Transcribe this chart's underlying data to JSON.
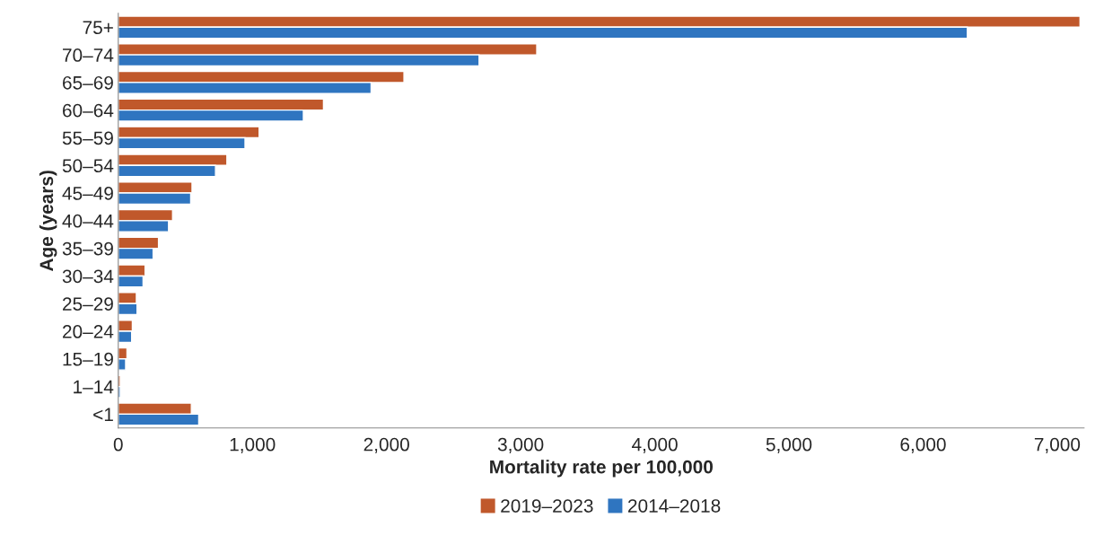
{
  "chart_data": {
    "type": "bar",
    "orientation": "horizontal",
    "xlabel": "Mortality rate per 100,000",
    "ylabel": "Age (years)",
    "categories": [
      "75+",
      "70–74",
      "65–69",
      "60–64",
      "55–59",
      "50–54",
      "45–49",
      "40–44",
      "35–39",
      "30–34",
      "25–29",
      "20–24",
      "15–19",
      "1–14",
      "<1"
    ],
    "series": [
      {
        "name": "2019–2023",
        "color": "#c0582b",
        "values": [
          7170,
          3120,
          2130,
          1530,
          1050,
          810,
          550,
          405,
          300,
          200,
          135,
          105,
          65,
          15,
          545
        ]
      },
      {
        "name": "2014–2018",
        "color": "#2f75c0",
        "values": [
          6330,
          2690,
          1885,
          1380,
          945,
          725,
          540,
          375,
          260,
          185,
          140,
          100,
          55,
          15,
          600
        ]
      }
    ],
    "xlim": [
      0,
      7200
    ],
    "xticks": [
      {
        "value": 0,
        "label": "0"
      },
      {
        "value": 1000,
        "label": "1,000"
      },
      {
        "value": 2000,
        "label": "2,000"
      },
      {
        "value": 3000,
        "label": "3,000"
      },
      {
        "value": 4000,
        "label": "4,000"
      },
      {
        "value": 5000,
        "label": "5,000"
      },
      {
        "value": 6000,
        "label": "6,000"
      },
      {
        "value": 7000,
        "label": "7,000"
      }
    ],
    "grid": false,
    "legend": "bottom"
  }
}
